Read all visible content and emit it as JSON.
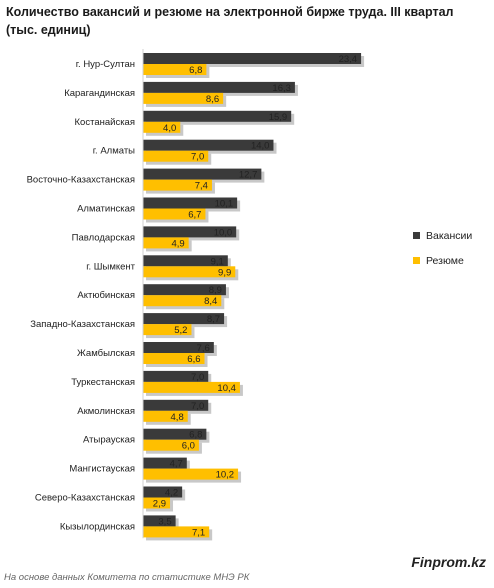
{
  "chart_data": {
    "type": "bar",
    "orientation": "horizontal",
    "title": "Количество вакансий  и резюме на электронной бирже труда. III квартал (тыс. единиц)",
    "categories": [
      "г. Нур-Султан",
      "Карагандинская",
      "Костанайская",
      "г. Алматы",
      "Восточно-Казахстанская",
      "Алматинская",
      "Павлодарская",
      "г. Шымкент",
      "Актюбинская",
      "Западно-Казахстанская",
      "Жамбылская",
      "Туркестанская",
      "Акмолинская",
      "Атырауская",
      "Мангистауская",
      "Северо-Казахстанская",
      "Кызылординская"
    ],
    "series": [
      {
        "name": "Вакансии",
        "color": "#3a3a3a",
        "values": [
          23.4,
          16.3,
          15.9,
          14.0,
          12.7,
          10.1,
          10.0,
          9.1,
          8.9,
          8.7,
          7.6,
          7.0,
          7.0,
          6.8,
          4.7,
          4.2,
          3.5
        ],
        "labels": [
          "23,4",
          "16,3",
          "15,9",
          "14,0",
          "12,7",
          "10,1",
          "10,0",
          "9,1",
          "8,9",
          "8,7",
          "7,6",
          "7,0",
          "7,0",
          "6,8",
          "4,7",
          "4,2",
          "3,5"
        ]
      },
      {
        "name": "Резюме",
        "color": "#ffbf00",
        "values": [
          6.8,
          8.6,
          4.0,
          7.0,
          7.4,
          6.7,
          4.9,
          9.9,
          8.4,
          5.2,
          6.6,
          10.4,
          4.8,
          6.0,
          10.2,
          2.9,
          7.1
        ],
        "labels": [
          "6,8",
          "8,6",
          "4,0",
          "7,0",
          "7,4",
          "6,7",
          "4,9",
          "9,9",
          "8,4",
          "5,2",
          "6,6",
          "10,4",
          "4,8",
          "6,0",
          "10,2",
          "2,9",
          "7,1"
        ]
      }
    ],
    "xlim": [
      0,
      25
    ],
    "grid": false,
    "legend_position": "right"
  },
  "brand": "Finprom.kz",
  "source": "На основе данных Комитета по статистике МНЭ РК"
}
